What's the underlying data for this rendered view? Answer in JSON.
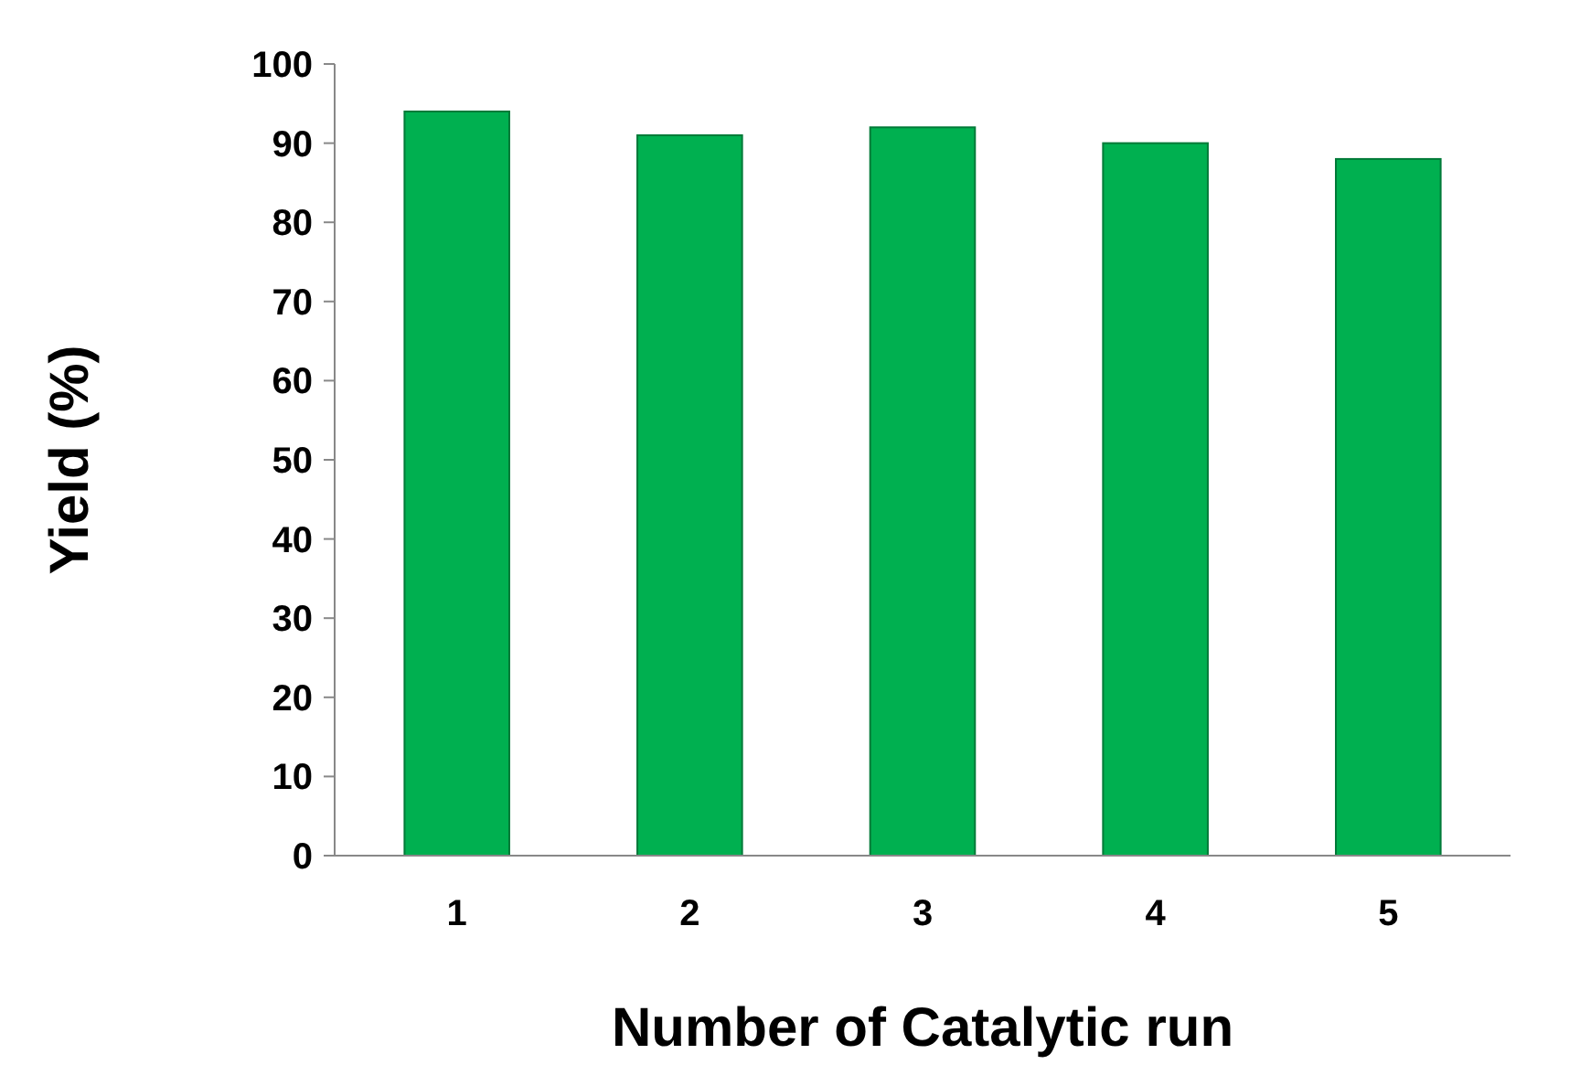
{
  "chart_data": {
    "type": "bar",
    "xlabel": "Number of Catalytic run",
    "ylabel": "Yield (%)",
    "categories": [
      "1",
      "2",
      "3",
      "4",
      "5"
    ],
    "values": [
      94,
      91,
      92,
      90,
      88
    ],
    "color": "#00b050",
    "ylim": [
      0,
      100
    ],
    "yticks": [
      0,
      10,
      20,
      30,
      40,
      50,
      60,
      70,
      80,
      90,
      100
    ],
    "grid": false
  }
}
